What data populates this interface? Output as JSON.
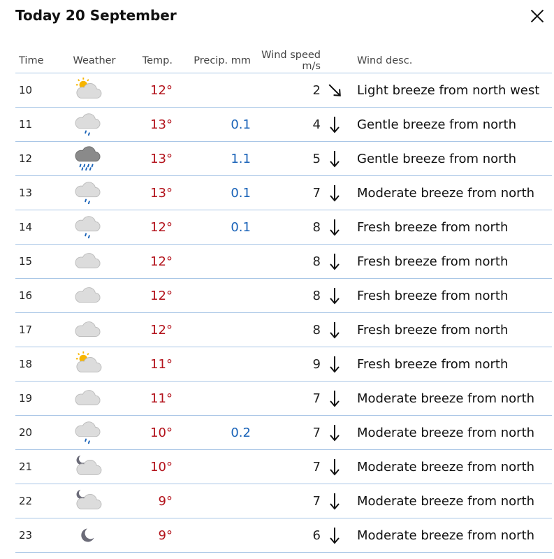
{
  "header": {
    "title": "Today 20 September"
  },
  "columns": {
    "time": "Time",
    "weather": "Weather",
    "temp": "Temp.",
    "precip": "Precip. mm",
    "wind_speed": "Wind speed m/s",
    "wind_desc": "Wind desc."
  },
  "rows": [
    {
      "time": "10",
      "icon": "partly-cloudy-day-icon",
      "temp": "12°",
      "precip": "",
      "wind": "2",
      "dir": "northwest",
      "desc": "Light breeze from north west"
    },
    {
      "time": "11",
      "icon": "light-rain-icon",
      "temp": "13°",
      "precip": "0.1",
      "wind": "4",
      "dir": "north",
      "desc": "Gentle breeze from north"
    },
    {
      "time": "12",
      "icon": "rain-icon",
      "temp": "13°",
      "precip": "1.1",
      "wind": "5",
      "dir": "north",
      "desc": "Gentle breeze from north"
    },
    {
      "time": "13",
      "icon": "light-rain-icon",
      "temp": "13°",
      "precip": "0.1",
      "wind": "7",
      "dir": "north",
      "desc": "Moderate breeze from north"
    },
    {
      "time": "14",
      "icon": "light-rain-icon",
      "temp": "12°",
      "precip": "0.1",
      "wind": "8",
      "dir": "north",
      "desc": "Fresh breeze from north"
    },
    {
      "time": "15",
      "icon": "cloudy-icon",
      "temp": "12°",
      "precip": "",
      "wind": "8",
      "dir": "north",
      "desc": "Fresh breeze from north"
    },
    {
      "time": "16",
      "icon": "cloudy-icon",
      "temp": "12°",
      "precip": "",
      "wind": "8",
      "dir": "north",
      "desc": "Fresh breeze from north"
    },
    {
      "time": "17",
      "icon": "cloudy-icon",
      "temp": "12°",
      "precip": "",
      "wind": "8",
      "dir": "north",
      "desc": "Fresh breeze from north"
    },
    {
      "time": "18",
      "icon": "partly-cloudy-day-icon",
      "temp": "11°",
      "precip": "",
      "wind": "9",
      "dir": "north",
      "desc": "Fresh breeze from north"
    },
    {
      "time": "19",
      "icon": "cloudy-icon",
      "temp": "11°",
      "precip": "",
      "wind": "7",
      "dir": "north",
      "desc": "Moderate breeze from north"
    },
    {
      "time": "20",
      "icon": "light-rain-icon",
      "temp": "10°",
      "precip": "0.2",
      "wind": "7",
      "dir": "north",
      "desc": "Moderate breeze from north"
    },
    {
      "time": "21",
      "icon": "partly-cloudy-night-icon",
      "temp": "10°",
      "precip": "",
      "wind": "7",
      "dir": "north",
      "desc": "Moderate breeze from north"
    },
    {
      "time": "22",
      "icon": "partly-cloudy-night-icon",
      "temp": "9°",
      "precip": "",
      "wind": "7",
      "dir": "north",
      "desc": "Moderate breeze from north"
    },
    {
      "time": "23",
      "icon": "clear-night-icon",
      "temp": "9°",
      "precip": "",
      "wind": "6",
      "dir": "north",
      "desc": "Moderate breeze from north"
    }
  ],
  "colors": {
    "temp": "#b3131c",
    "precip": "#1a63b8",
    "divider": "#a9c6e6"
  }
}
